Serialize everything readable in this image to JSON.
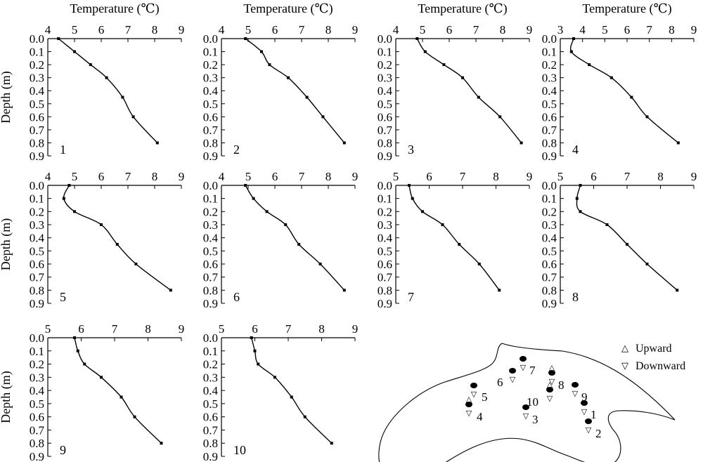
{
  "chart_data": [
    {
      "type": "line",
      "panel_label": "1",
      "xlabel": "Temperature (℃)",
      "ylabel": "Depth (m)",
      "x_ticks": [
        4,
        5,
        6,
        7,
        8,
        9
      ],
      "xlim": [
        4,
        9
      ],
      "y_ticks": [
        0.0,
        0.1,
        0.2,
        0.3,
        0.4,
        0.5,
        0.6,
        0.7,
        0.8,
        0.9
      ],
      "ylim": [
        0,
        0.9
      ],
      "points": [
        [
          4.4,
          0.0
        ],
        [
          5.0,
          0.1
        ],
        [
          5.6,
          0.2
        ],
        [
          6.2,
          0.3
        ],
        [
          6.8,
          0.45
        ],
        [
          7.2,
          0.6
        ],
        [
          8.1,
          0.8
        ]
      ]
    },
    {
      "type": "line",
      "panel_label": "2",
      "xlabel": "Temperature (℃)",
      "ylabel": "",
      "x_ticks": [
        4,
        5,
        6,
        7,
        8,
        9
      ],
      "xlim": [
        4,
        9
      ],
      "y_ticks": [
        0.0,
        0.1,
        0.2,
        0.3,
        0.4,
        0.5,
        0.6,
        0.7,
        0.8,
        0.9
      ],
      "ylim": [
        0,
        0.9
      ],
      "points": [
        [
          4.9,
          0.0
        ],
        [
          5.5,
          0.1
        ],
        [
          5.8,
          0.2
        ],
        [
          6.5,
          0.3
        ],
        [
          7.2,
          0.45
        ],
        [
          7.8,
          0.6
        ],
        [
          8.6,
          0.8
        ]
      ]
    },
    {
      "type": "line",
      "panel_label": "3",
      "xlabel": "Temperature (℃)",
      "ylabel": "",
      "x_ticks": [
        4,
        5,
        6,
        7,
        8,
        9
      ],
      "xlim": [
        4,
        9
      ],
      "y_ticks": [
        0.0,
        0.1,
        0.2,
        0.3,
        0.4,
        0.5,
        0.6,
        0.7,
        0.8,
        0.9
      ],
      "ylim": [
        0,
        0.9
      ],
      "points": [
        [
          4.8,
          0.0
        ],
        [
          5.1,
          0.1
        ],
        [
          5.8,
          0.2
        ],
        [
          6.5,
          0.3
        ],
        [
          7.1,
          0.45
        ],
        [
          7.9,
          0.6
        ],
        [
          8.7,
          0.8
        ]
      ]
    },
    {
      "type": "line",
      "panel_label": "4",
      "xlabel": "Temperature (℃)",
      "ylabel": "",
      "x_ticks": [
        3,
        4,
        5,
        6,
        7,
        8,
        9
      ],
      "xlim": [
        3,
        9
      ],
      "y_ticks": [
        0.0,
        0.1,
        0.2,
        0.3,
        0.4,
        0.5,
        0.6,
        0.7,
        0.8,
        0.9
      ],
      "ylim": [
        0,
        0.9
      ],
      "points": [
        [
          3.6,
          0.0
        ],
        [
          3.5,
          0.1
        ],
        [
          4.3,
          0.2
        ],
        [
          5.3,
          0.3
        ],
        [
          6.2,
          0.45
        ],
        [
          6.9,
          0.6
        ],
        [
          8.3,
          0.8
        ]
      ]
    },
    {
      "type": "line",
      "panel_label": "5",
      "xlabel": "",
      "ylabel": "Depth (m)",
      "x_ticks": [
        4,
        5,
        6,
        7,
        8,
        9
      ],
      "xlim": [
        4,
        9
      ],
      "y_ticks": [
        0.0,
        0.1,
        0.2,
        0.3,
        0.4,
        0.5,
        0.6,
        0.7,
        0.8,
        0.9
      ],
      "ylim": [
        0,
        0.9
      ],
      "points": [
        [
          4.8,
          0.0
        ],
        [
          4.6,
          0.1
        ],
        [
          5.0,
          0.2
        ],
        [
          6.0,
          0.3
        ],
        [
          6.6,
          0.45
        ],
        [
          7.3,
          0.6
        ],
        [
          8.6,
          0.8
        ]
      ]
    },
    {
      "type": "line",
      "panel_label": "6",
      "xlabel": "",
      "ylabel": "",
      "x_ticks": [
        4,
        5,
        6,
        7,
        8,
        9
      ],
      "xlim": [
        4,
        9
      ],
      "y_ticks": [
        0.0,
        0.1,
        0.2,
        0.3,
        0.4,
        0.5,
        0.6,
        0.7,
        0.8,
        0.9
      ],
      "ylim": [
        0,
        0.9
      ],
      "points": [
        [
          4.9,
          0.0
        ],
        [
          5.2,
          0.1
        ],
        [
          5.7,
          0.2
        ],
        [
          6.4,
          0.3
        ],
        [
          6.9,
          0.45
        ],
        [
          7.7,
          0.6
        ],
        [
          8.6,
          0.8
        ]
      ]
    },
    {
      "type": "line",
      "panel_label": "7",
      "xlabel": "",
      "ylabel": "",
      "x_ticks": [
        5,
        6,
        7,
        8,
        9
      ],
      "xlim": [
        5,
        9
      ],
      "y_ticks": [
        0.0,
        0.1,
        0.2,
        0.3,
        0.4,
        0.5,
        0.6,
        0.7,
        0.8,
        0.9
      ],
      "ylim": [
        0,
        0.9
      ],
      "points": [
        [
          5.4,
          0.0
        ],
        [
          5.5,
          0.1
        ],
        [
          5.8,
          0.2
        ],
        [
          6.4,
          0.3
        ],
        [
          6.9,
          0.45
        ],
        [
          7.5,
          0.6
        ],
        [
          8.1,
          0.8
        ]
      ]
    },
    {
      "type": "line",
      "panel_label": "8",
      "xlabel": "",
      "ylabel": "",
      "x_ticks": [
        5,
        6,
        7,
        8,
        9
      ],
      "xlim": [
        5,
        9
      ],
      "y_ticks": [
        0.0,
        0.1,
        0.2,
        0.3,
        0.4,
        0.5,
        0.6,
        0.7,
        0.8,
        0.9
      ],
      "ylim": [
        0,
        0.9
      ],
      "points": [
        [
          5.6,
          0.0
        ],
        [
          5.5,
          0.1
        ],
        [
          5.6,
          0.2
        ],
        [
          6.4,
          0.3
        ],
        [
          7.0,
          0.45
        ],
        [
          7.6,
          0.6
        ],
        [
          8.5,
          0.8
        ]
      ]
    },
    {
      "type": "line",
      "panel_label": "9",
      "xlabel": "",
      "ylabel": "Depth (m)",
      "x_ticks": [
        5,
        6,
        7,
        8,
        9
      ],
      "xlim": [
        5,
        9
      ],
      "y_ticks": [
        0.0,
        0.1,
        0.2,
        0.3,
        0.4,
        0.5,
        0.6,
        0.7,
        0.8,
        0.9
      ],
      "ylim": [
        0,
        0.9
      ],
      "points": [
        [
          5.8,
          0.0
        ],
        [
          5.9,
          0.1
        ],
        [
          6.1,
          0.2
        ],
        [
          6.6,
          0.3
        ],
        [
          7.2,
          0.45
        ],
        [
          7.6,
          0.6
        ],
        [
          8.4,
          0.8
        ]
      ]
    },
    {
      "type": "line",
      "panel_label": "10",
      "xlabel": "",
      "ylabel": "",
      "x_ticks": [
        5,
        6,
        7,
        8,
        9
      ],
      "xlim": [
        5,
        9
      ],
      "y_ticks": [
        0.0,
        0.1,
        0.2,
        0.3,
        0.4,
        0.5,
        0.6,
        0.7,
        0.8,
        0.9
      ],
      "ylim": [
        0,
        0.9
      ],
      "points": [
        [
          5.9,
          0.0
        ],
        [
          6.0,
          0.1
        ],
        [
          6.1,
          0.2
        ],
        [
          6.6,
          0.3
        ],
        [
          7.1,
          0.45
        ],
        [
          7.5,
          0.6
        ],
        [
          8.3,
          0.8
        ]
      ]
    }
  ],
  "map": {
    "legend": {
      "upward": "Upward",
      "downward": "Downward"
    },
    "sites": [
      {
        "label": "1",
        "direction": "downward"
      },
      {
        "label": "2",
        "direction": "downward"
      },
      {
        "label": "3",
        "direction": "downward"
      },
      {
        "label": "4",
        "direction": "both"
      },
      {
        "label": "5",
        "direction": "downward"
      },
      {
        "label": "6",
        "direction": "downward"
      },
      {
        "label": "7",
        "direction": "downward"
      },
      {
        "label": "8",
        "direction": "both"
      },
      {
        "label": "9",
        "direction": "downward"
      },
      {
        "label": "10",
        "direction": "both"
      }
    ]
  }
}
